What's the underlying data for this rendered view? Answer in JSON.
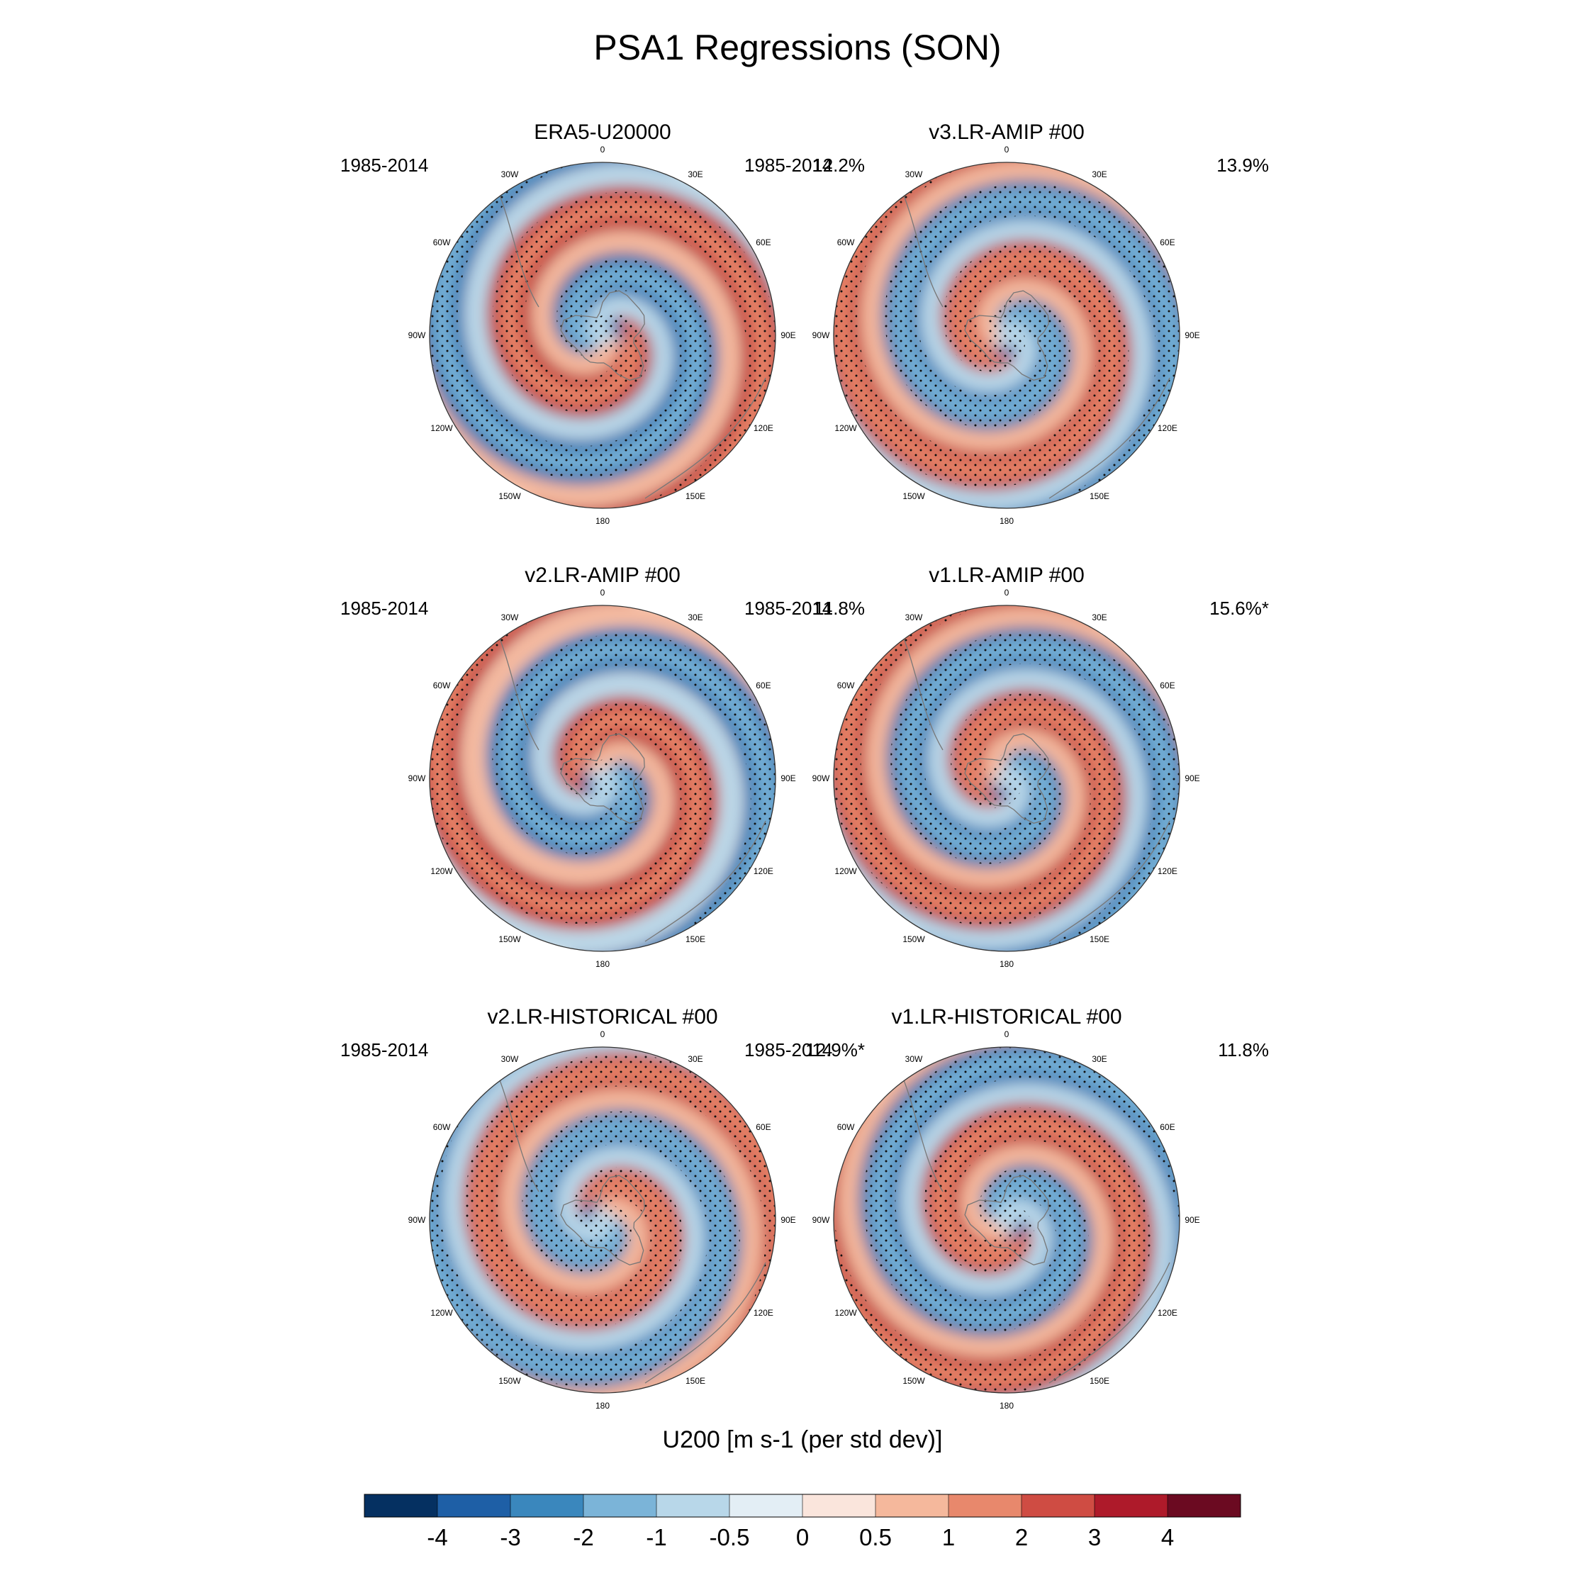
{
  "title": "PSA1 Regressions (SON)",
  "longitude_labels": [
    "0",
    "30E",
    "60E",
    "90E",
    "120E",
    "150E",
    "180",
    "150W",
    "120W",
    "90W",
    "60W",
    "30W"
  ],
  "panels": [
    {
      "title": "ERA5-U20000",
      "period": "1985-2014",
      "percent": "12.2%"
    },
    {
      "title": "v3.LR-AMIP  #00",
      "period": "1985-2014",
      "percent": "13.9%"
    },
    {
      "title": "v2.LR-AMIP  #00",
      "period": "1985-2014",
      "percent": "11.8%"
    },
    {
      "title": "v1.LR-AMIP  #00",
      "period": "1985-2014",
      "percent": "15.6%*"
    },
    {
      "title": "v2.LR-HISTORICAL  #00",
      "period": "1985-2014",
      "percent": "12.9%*"
    },
    {
      "title": "v1.LR-HISTORICAL  #00",
      "period": "1985-2014",
      "percent": "11.8%"
    }
  ],
  "colorbar": {
    "title": "U200 [m s-1 (per std dev)]",
    "levels": [
      "-4",
      "-3",
      "-2",
      "-1",
      "-0.5",
      "0",
      "0.5",
      "1",
      "2",
      "3",
      "4"
    ],
    "colors": [
      "#053061",
      "#1e5fa6",
      "#3a87bd",
      "#7bb4d8",
      "#b8d7e9",
      "#e3eef5",
      "#fae5dc",
      "#f5b89c",
      "#e8886c",
      "#cf4c43",
      "#ae1a2a",
      "#6b0a21"
    ]
  }
}
